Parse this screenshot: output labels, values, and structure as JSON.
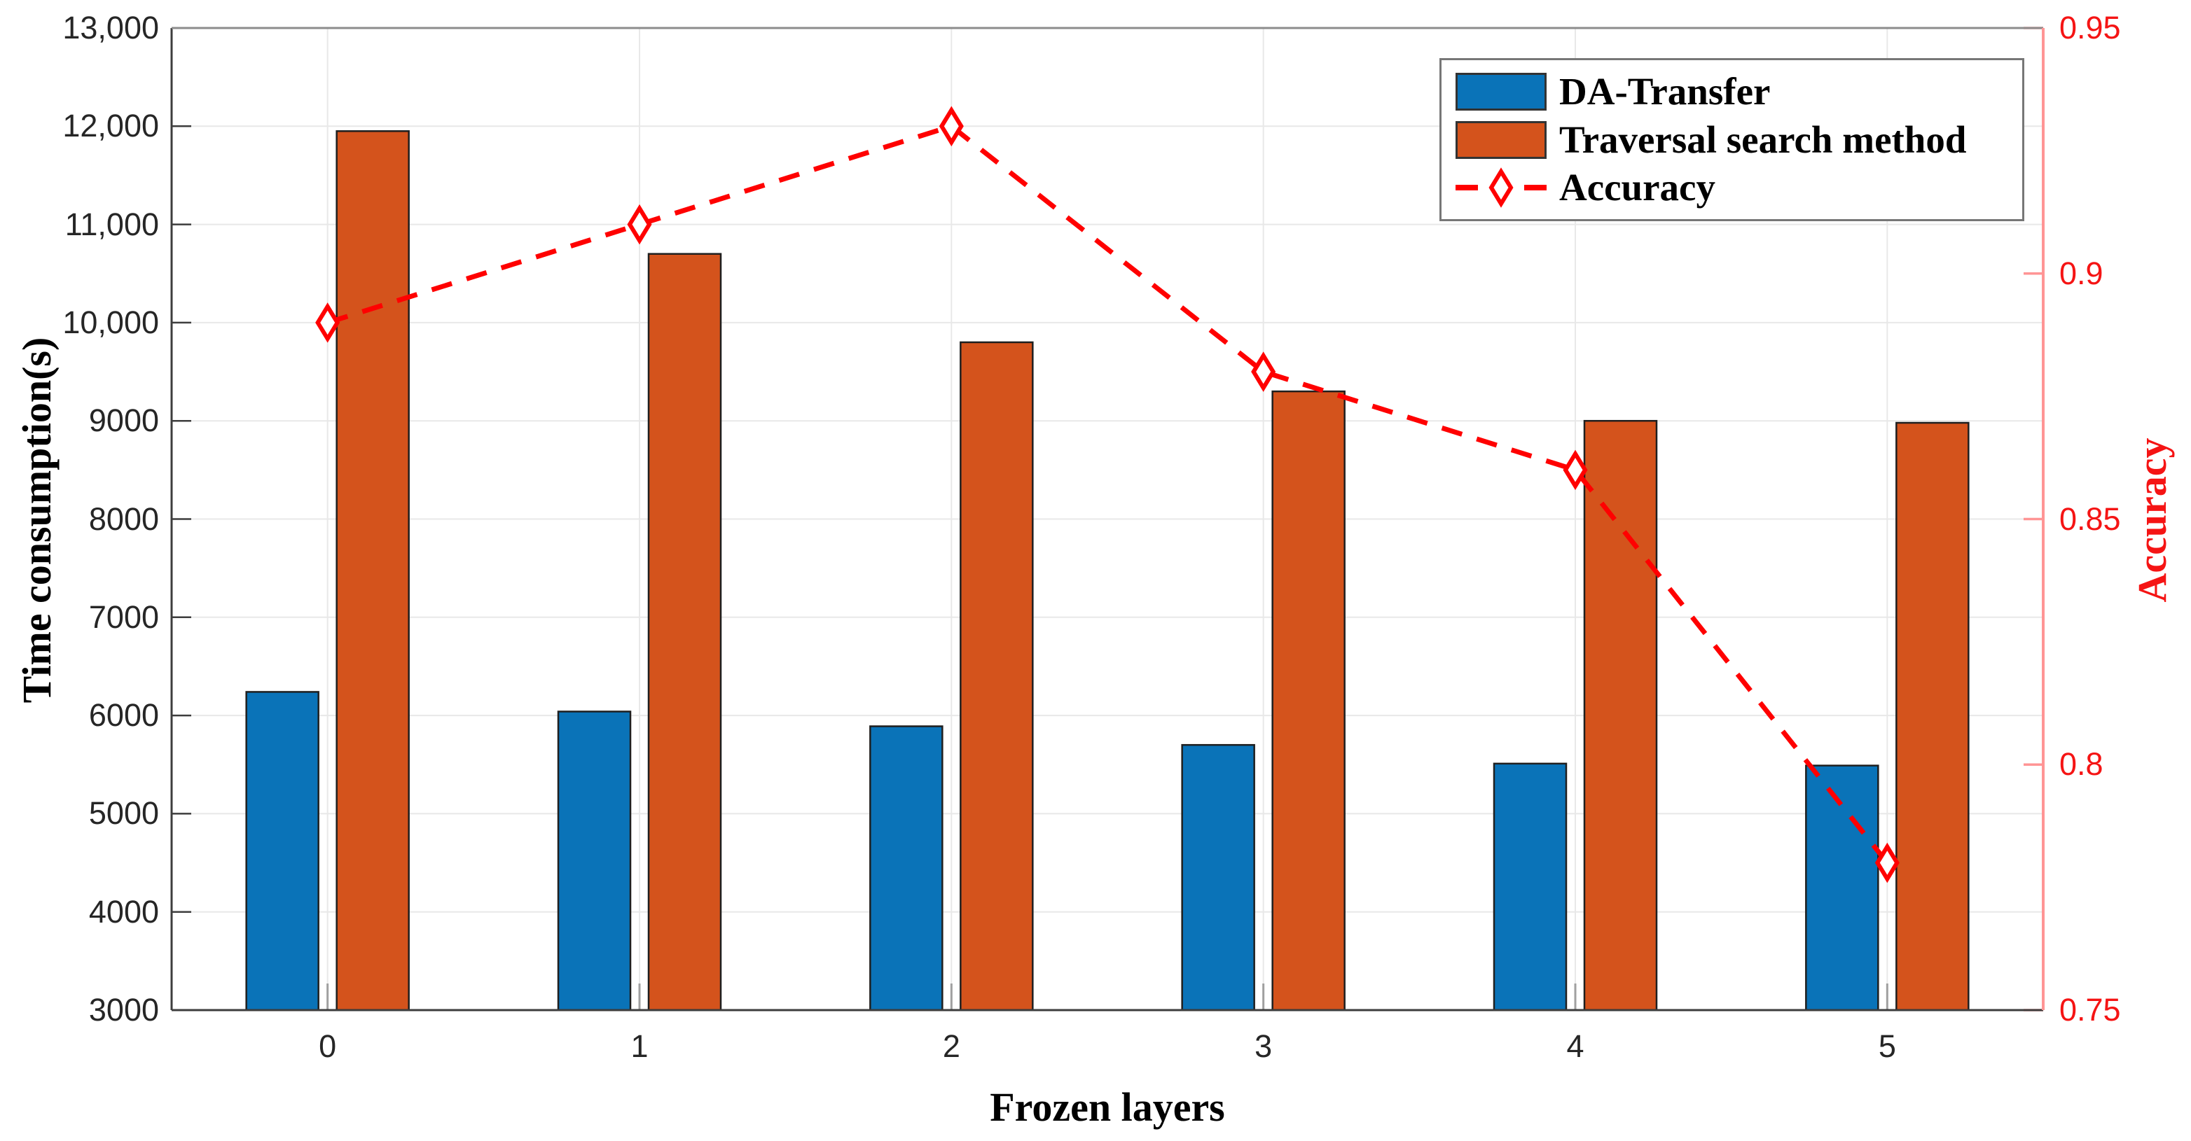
{
  "chart_data": {
    "type": "bar+line",
    "title": "",
    "xlabel": "Frozen layers",
    "ylabel_left": "Time consumption(s)",
    "ylabel_right": "Accuracy",
    "categories": [
      "0",
      "1",
      "2",
      "3",
      "4",
      "5"
    ],
    "series": [
      {
        "name": "DA-Transfer",
        "type": "bar",
        "axis": "left",
        "color": "#0a73b8",
        "values": [
          6240,
          6040,
          5890,
          5700,
          5510,
          5490
        ]
      },
      {
        "name": "Traversal search method",
        "type": "bar",
        "axis": "left",
        "color": "#d4531c",
        "values": [
          11950,
          10700,
          9800,
          9300,
          9000,
          8980
        ]
      },
      {
        "name": "Accuracy",
        "type": "line",
        "axis": "right",
        "color": "#ff0000",
        "line_style": "dashed",
        "marker": "open-diamond",
        "values": [
          0.89,
          0.91,
          0.93,
          0.88,
          0.86,
          0.78
        ]
      }
    ],
    "y_left": {
      "min": 3000,
      "max": 13000,
      "tick_values": [
        3000,
        4000,
        5000,
        6000,
        7000,
        8000,
        9000,
        10000,
        11000,
        12000,
        13000
      ],
      "tick_labels": [
        "3000",
        "4000",
        "5000",
        "6000",
        "7000",
        "8000",
        "9000",
        "10,000",
        "11,000",
        "12,000",
        "13,000"
      ]
    },
    "y_right": {
      "min": 0.75,
      "max": 0.95,
      "tick_values": [
        0.75,
        0.8,
        0.85,
        0.9,
        0.95
      ],
      "tick_labels": [
        "0.75",
        "0.8",
        "0.85",
        "0.9",
        "0.95"
      ]
    },
    "grid": true,
    "legend_position": "top-right",
    "colors": {
      "right_axis_spine": "#ff9595",
      "right_tick_text": "#f51414",
      "axis_spine": "#3d3d3d",
      "top_spine": "#8c8c8c",
      "grid_line": "#e8e8e8",
      "bar_edge": "#1f1f1f",
      "x_tick": "#a0a0a0",
      "marker_face": "#ffffff"
    }
  }
}
